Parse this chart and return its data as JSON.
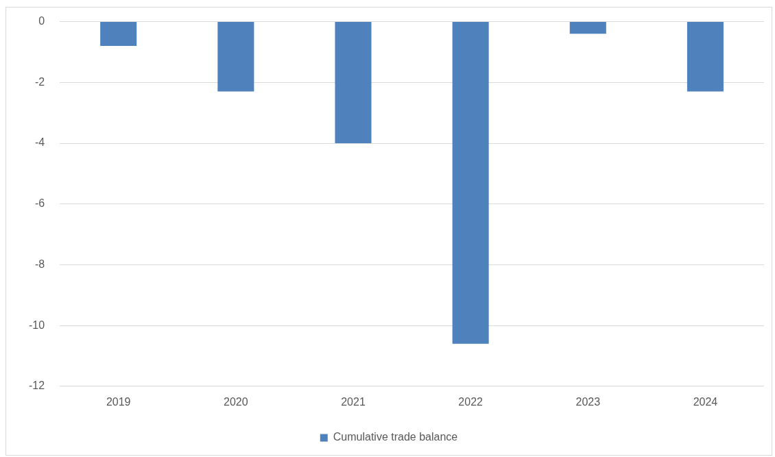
{
  "chart_data": {
    "type": "bar",
    "categories": [
      "2019",
      "2020",
      "2021",
      "2022",
      "2023",
      "2024"
    ],
    "series": [
      {
        "name": "Cumulative trade balance",
        "color": "#4f81bd",
        "values": [
          -0.8,
          -2.3,
          -4.0,
          -10.6,
          -0.4,
          -2.3
        ]
      }
    ],
    "ylim": [
      -12,
      0
    ],
    "yticks": [
      -12,
      -10,
      -8,
      -6,
      -4,
      -2,
      0
    ],
    "grid": "y",
    "legend": "bottom"
  }
}
